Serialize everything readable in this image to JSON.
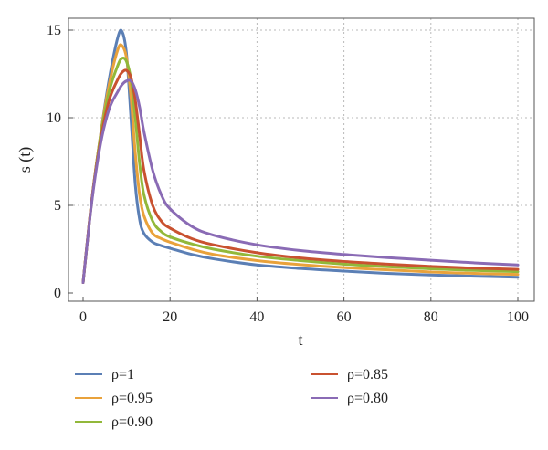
{
  "chart_data": {
    "type": "line",
    "xlabel": "t",
    "ylabel": "s (t)",
    "xlim": [
      0,
      100
    ],
    "ylim": [
      0,
      15.5
    ],
    "xticks": [
      0,
      20,
      40,
      60,
      80,
      100
    ],
    "yticks": [
      0,
      5,
      10,
      15
    ],
    "grid": "dotted, at ticks",
    "legend_position": "bottom, two columns",
    "series": [
      {
        "name": "ρ=1",
        "color": "#5b7fb5",
        "x": [
          0,
          2,
          4,
          6,
          8,
          9,
          10,
          11,
          12,
          13,
          14,
          16,
          18,
          20,
          25,
          30,
          40,
          50,
          60,
          70,
          80,
          90,
          100
        ],
        "y": [
          0.6,
          5.3,
          9.0,
          12.2,
          14.6,
          14.9,
          13.6,
          10.0,
          6.2,
          4.2,
          3.4,
          2.9,
          2.7,
          2.55,
          2.2,
          1.95,
          1.6,
          1.4,
          1.25,
          1.12,
          1.03,
          0.96,
          0.9
        ]
      },
      {
        "name": "ρ=0.95",
        "color": "#e9a23b",
        "x": [
          0,
          2,
          4,
          6,
          8,
          9,
          10,
          11,
          12,
          13,
          14,
          16,
          18,
          20,
          25,
          30,
          40,
          50,
          60,
          70,
          80,
          90,
          100
        ],
        "y": [
          0.6,
          5.3,
          9.0,
          11.9,
          13.9,
          14.1,
          13.4,
          11.2,
          8.0,
          5.6,
          4.4,
          3.4,
          3.1,
          2.9,
          2.5,
          2.2,
          1.85,
          1.62,
          1.45,
          1.32,
          1.2,
          1.12,
          1.06
        ]
      },
      {
        "name": "ρ=0.90",
        "color": "#92b83a",
        "x": [
          0,
          2,
          4,
          6,
          8,
          9,
          10,
          11,
          12,
          13,
          14,
          16,
          18,
          20,
          25,
          30,
          40,
          50,
          60,
          70,
          80,
          90,
          100
        ],
        "y": [
          0.6,
          5.3,
          8.9,
          11.5,
          13.0,
          13.4,
          13.2,
          12.2,
          10.0,
          7.4,
          5.6,
          4.1,
          3.5,
          3.2,
          2.8,
          2.5,
          2.1,
          1.85,
          1.65,
          1.5,
          1.38,
          1.29,
          1.22
        ]
      },
      {
        "name": "ρ=0.85",
        "color": "#c95230",
        "x": [
          0,
          2,
          4,
          6,
          8,
          9,
          10,
          11,
          12,
          13,
          14,
          16,
          18,
          20,
          25,
          30,
          40,
          50,
          60,
          70,
          80,
          90,
          100
        ],
        "y": [
          0.6,
          5.3,
          8.7,
          11.0,
          12.2,
          12.6,
          12.7,
          12.3,
          11.0,
          9.0,
          7.0,
          5.0,
          4.1,
          3.7,
          3.1,
          2.75,
          2.3,
          2.0,
          1.8,
          1.65,
          1.52,
          1.42,
          1.35
        ]
      },
      {
        "name": "ρ=0.80",
        "color": "#8a6bb5",
        "x": [
          0,
          2,
          4,
          6,
          8,
          9,
          10,
          11,
          12,
          13,
          14,
          16,
          18,
          20,
          25,
          30,
          40,
          50,
          60,
          70,
          80,
          90,
          100
        ],
        "y": [
          0.6,
          5.2,
          8.5,
          10.5,
          11.5,
          11.9,
          12.1,
          12.1,
          11.6,
          10.6,
          9.2,
          7.0,
          5.6,
          4.8,
          3.8,
          3.3,
          2.75,
          2.42,
          2.2,
          2.02,
          1.87,
          1.72,
          1.6
        ]
      }
    ]
  }
}
